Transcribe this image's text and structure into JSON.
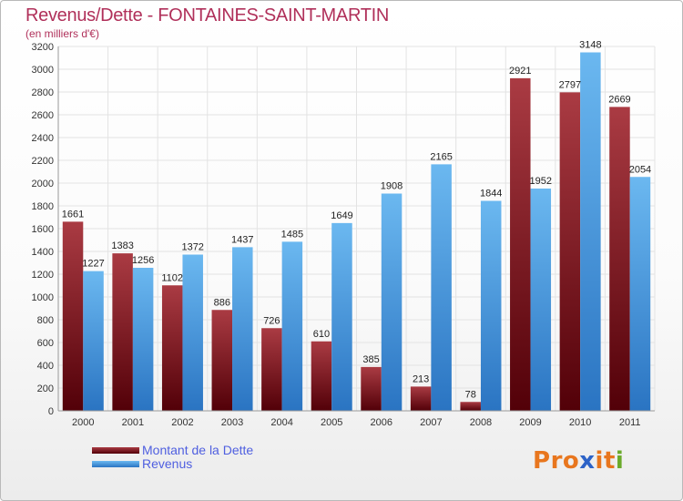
{
  "title": "Revenus/Dette - FONTAINES-SAINT-MARTIN",
  "subtitle": "(en milliers d'€)",
  "logo": {
    "text": "Proxiti",
    "letter_colors": [
      "#e8761e",
      "#e8761e",
      "#e8761e",
      "#2d63c7",
      "#e8761e",
      "#e8761e",
      "#6aaa2a"
    ]
  },
  "colors": {
    "dette": "#7b1520",
    "revenus": "#3e94dc",
    "axis_text": "#333333",
    "grid": "#e3e3e3",
    "legend_text": "#4f5fe0"
  },
  "chart_data": {
    "type": "bar",
    "categories": [
      "2000",
      "2001",
      "2002",
      "2003",
      "2004",
      "2005",
      "2006",
      "2007",
      "2008",
      "2009",
      "2010",
      "2011"
    ],
    "series": [
      {
        "name": "Montant de la Dette",
        "values": [
          1661,
          1383,
          1102,
          886,
          726,
          610,
          385,
          213,
          78,
          2921,
          2797,
          2669
        ]
      },
      {
        "name": "Revenus",
        "values": [
          1227,
          1256,
          1372,
          1437,
          1485,
          1649,
          1908,
          2165,
          1844,
          1952,
          3148,
          2054
        ]
      }
    ],
    "ylim": [
      0,
      3200
    ],
    "yticks": [
      0,
      200,
      400,
      600,
      800,
      1000,
      1200,
      1400,
      1600,
      1800,
      2000,
      2200,
      2400,
      2600,
      2800,
      3000,
      3200
    ],
    "grid": true,
    "legend_position": "bottom-left"
  }
}
